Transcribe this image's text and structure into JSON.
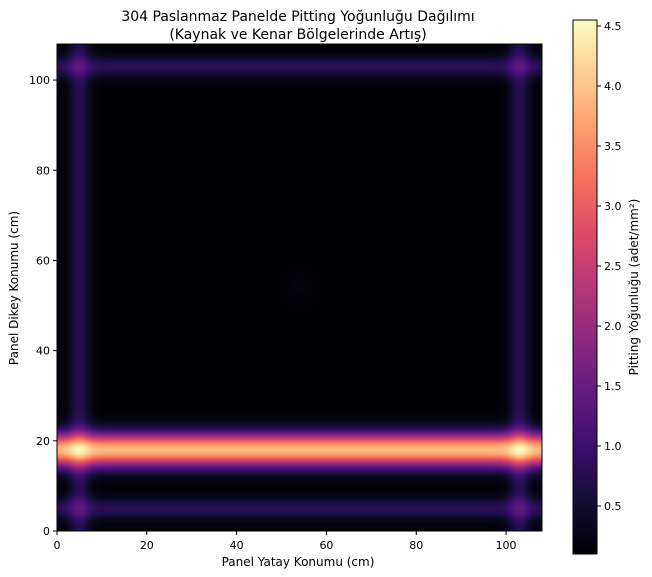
{
  "chart_data": {
    "type": "heatmap",
    "title_line1": "304 Paslanmaz Panelde Pitting Yoğunluğu Dağılımı",
    "title_line2": "(Kaynak ve Kenar Bölgelerinde Artış)",
    "xlabel": "Panel Yatay Konumu (cm)",
    "ylabel": "Panel Dikey Konumu (cm)",
    "colorbar_label": "Pitting Yoğunluğu (adet/mm²)",
    "colormap": "magma",
    "xlim": [
      0,
      108
    ],
    "ylim": [
      0,
      108
    ],
    "x_ticks": [
      0,
      20,
      40,
      60,
      80,
      100
    ],
    "y_ticks": [
      0,
      20,
      40,
      60,
      80,
      100
    ],
    "color_range": [
      0.1,
      4.55
    ],
    "colorbar_ticks": [
      "0.5",
      "1.0",
      "1.5",
      "2.0",
      "2.5",
      "3.0",
      "3.5",
      "4.0",
      "4.5"
    ],
    "features": {
      "background_density": 0.1,
      "weld_line": {
        "y": 18,
        "peak": 3.9
      },
      "edge_lines": [
        {
          "axis": "y",
          "position": 103,
          "peak": 0.85
        },
        {
          "axis": "y",
          "position": 5,
          "peak": 0.85
        },
        {
          "axis": "x",
          "position": 5,
          "peak": 0.8
        },
        {
          "axis": "x",
          "position": 103,
          "peak": 0.8
        }
      ],
      "hot_spots": [
        {
          "x": 5,
          "y": 18,
          "value": 4.55
        },
        {
          "x": 103,
          "y": 18,
          "value": 4.55
        },
        {
          "x": 5,
          "y": 103,
          "value": 1.3
        },
        {
          "x": 103,
          "y": 103,
          "value": 1.3
        },
        {
          "x": 5,
          "y": 5,
          "value": 1.25
        },
        {
          "x": 103,
          "y": 5,
          "value": 1.25
        },
        {
          "x": 54,
          "y": 54,
          "value": 0.2
        }
      ]
    }
  }
}
